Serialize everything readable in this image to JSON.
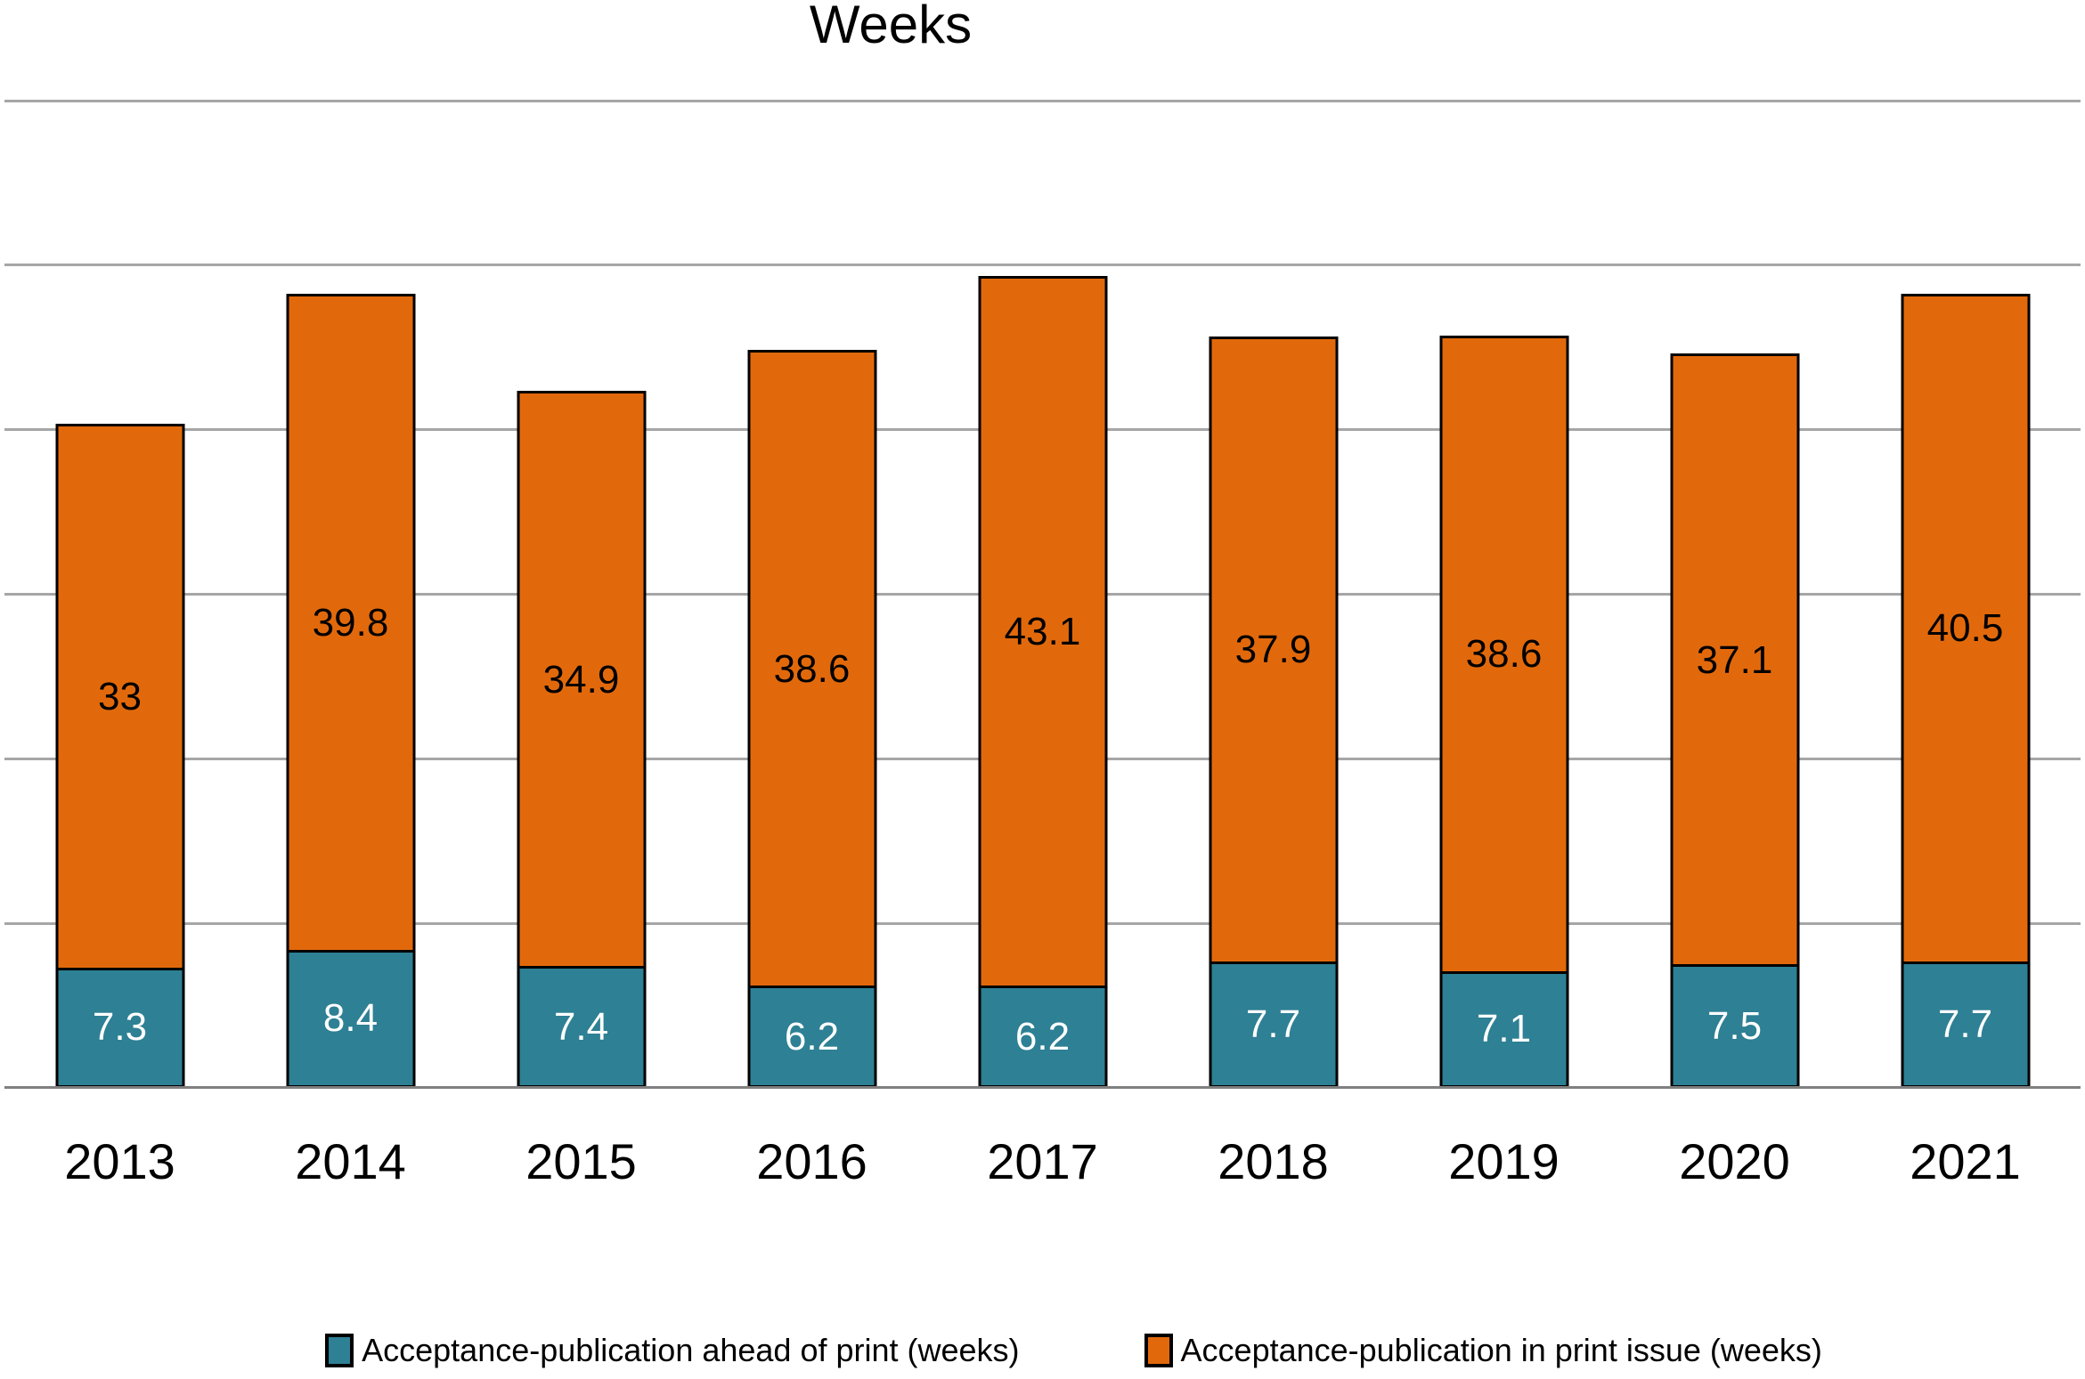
{
  "chart": {
    "title": "Weeks",
    "background": "#FFFFFF"
  },
  "chart_data": {
    "type": "bar",
    "stacked": true,
    "title": "Weeks",
    "categories": [
      "2013",
      "2014",
      "2015",
      "2016",
      "2017",
      "2018",
      "2019",
      "2020",
      "2021"
    ],
    "series": [
      {
        "name": "Acceptance-publication ahead of print (weeks)",
        "color": "#2E8094",
        "label_color": "#FFFFFF",
        "values": [
          7.3,
          8.4,
          7.4,
          6.2,
          6.2,
          7.7,
          7.1,
          7.5,
          7.7
        ],
        "labels": [
          "7.3",
          "8.4",
          "7.4",
          "6.2",
          "6.2",
          "7.7",
          "7.1",
          "7.5",
          "7.7"
        ]
      },
      {
        "name": "Acceptance-publication in print issue (weeks)",
        "color": "#E2690B",
        "label_color": "#000000",
        "values": [
          33,
          39.8,
          34.9,
          38.6,
          43.1,
          37.9,
          38.6,
          37.1,
          40.5
        ],
        "labels": [
          "33",
          "39.8",
          "34.9",
          "38.6",
          "43.1",
          "37.9",
          "38.6",
          "37.1",
          "40.5"
        ]
      }
    ],
    "xlabel": "",
    "ylabel": "",
    "ylim": [
      0,
      60
    ],
    "grid_step": 10,
    "grid": true,
    "y_tick_labels_visible": false,
    "legend_position": "bottom",
    "gridline_color": "#A6A6A6",
    "axis_line_color": "#808080",
    "bar_border_color": "#000000"
  }
}
